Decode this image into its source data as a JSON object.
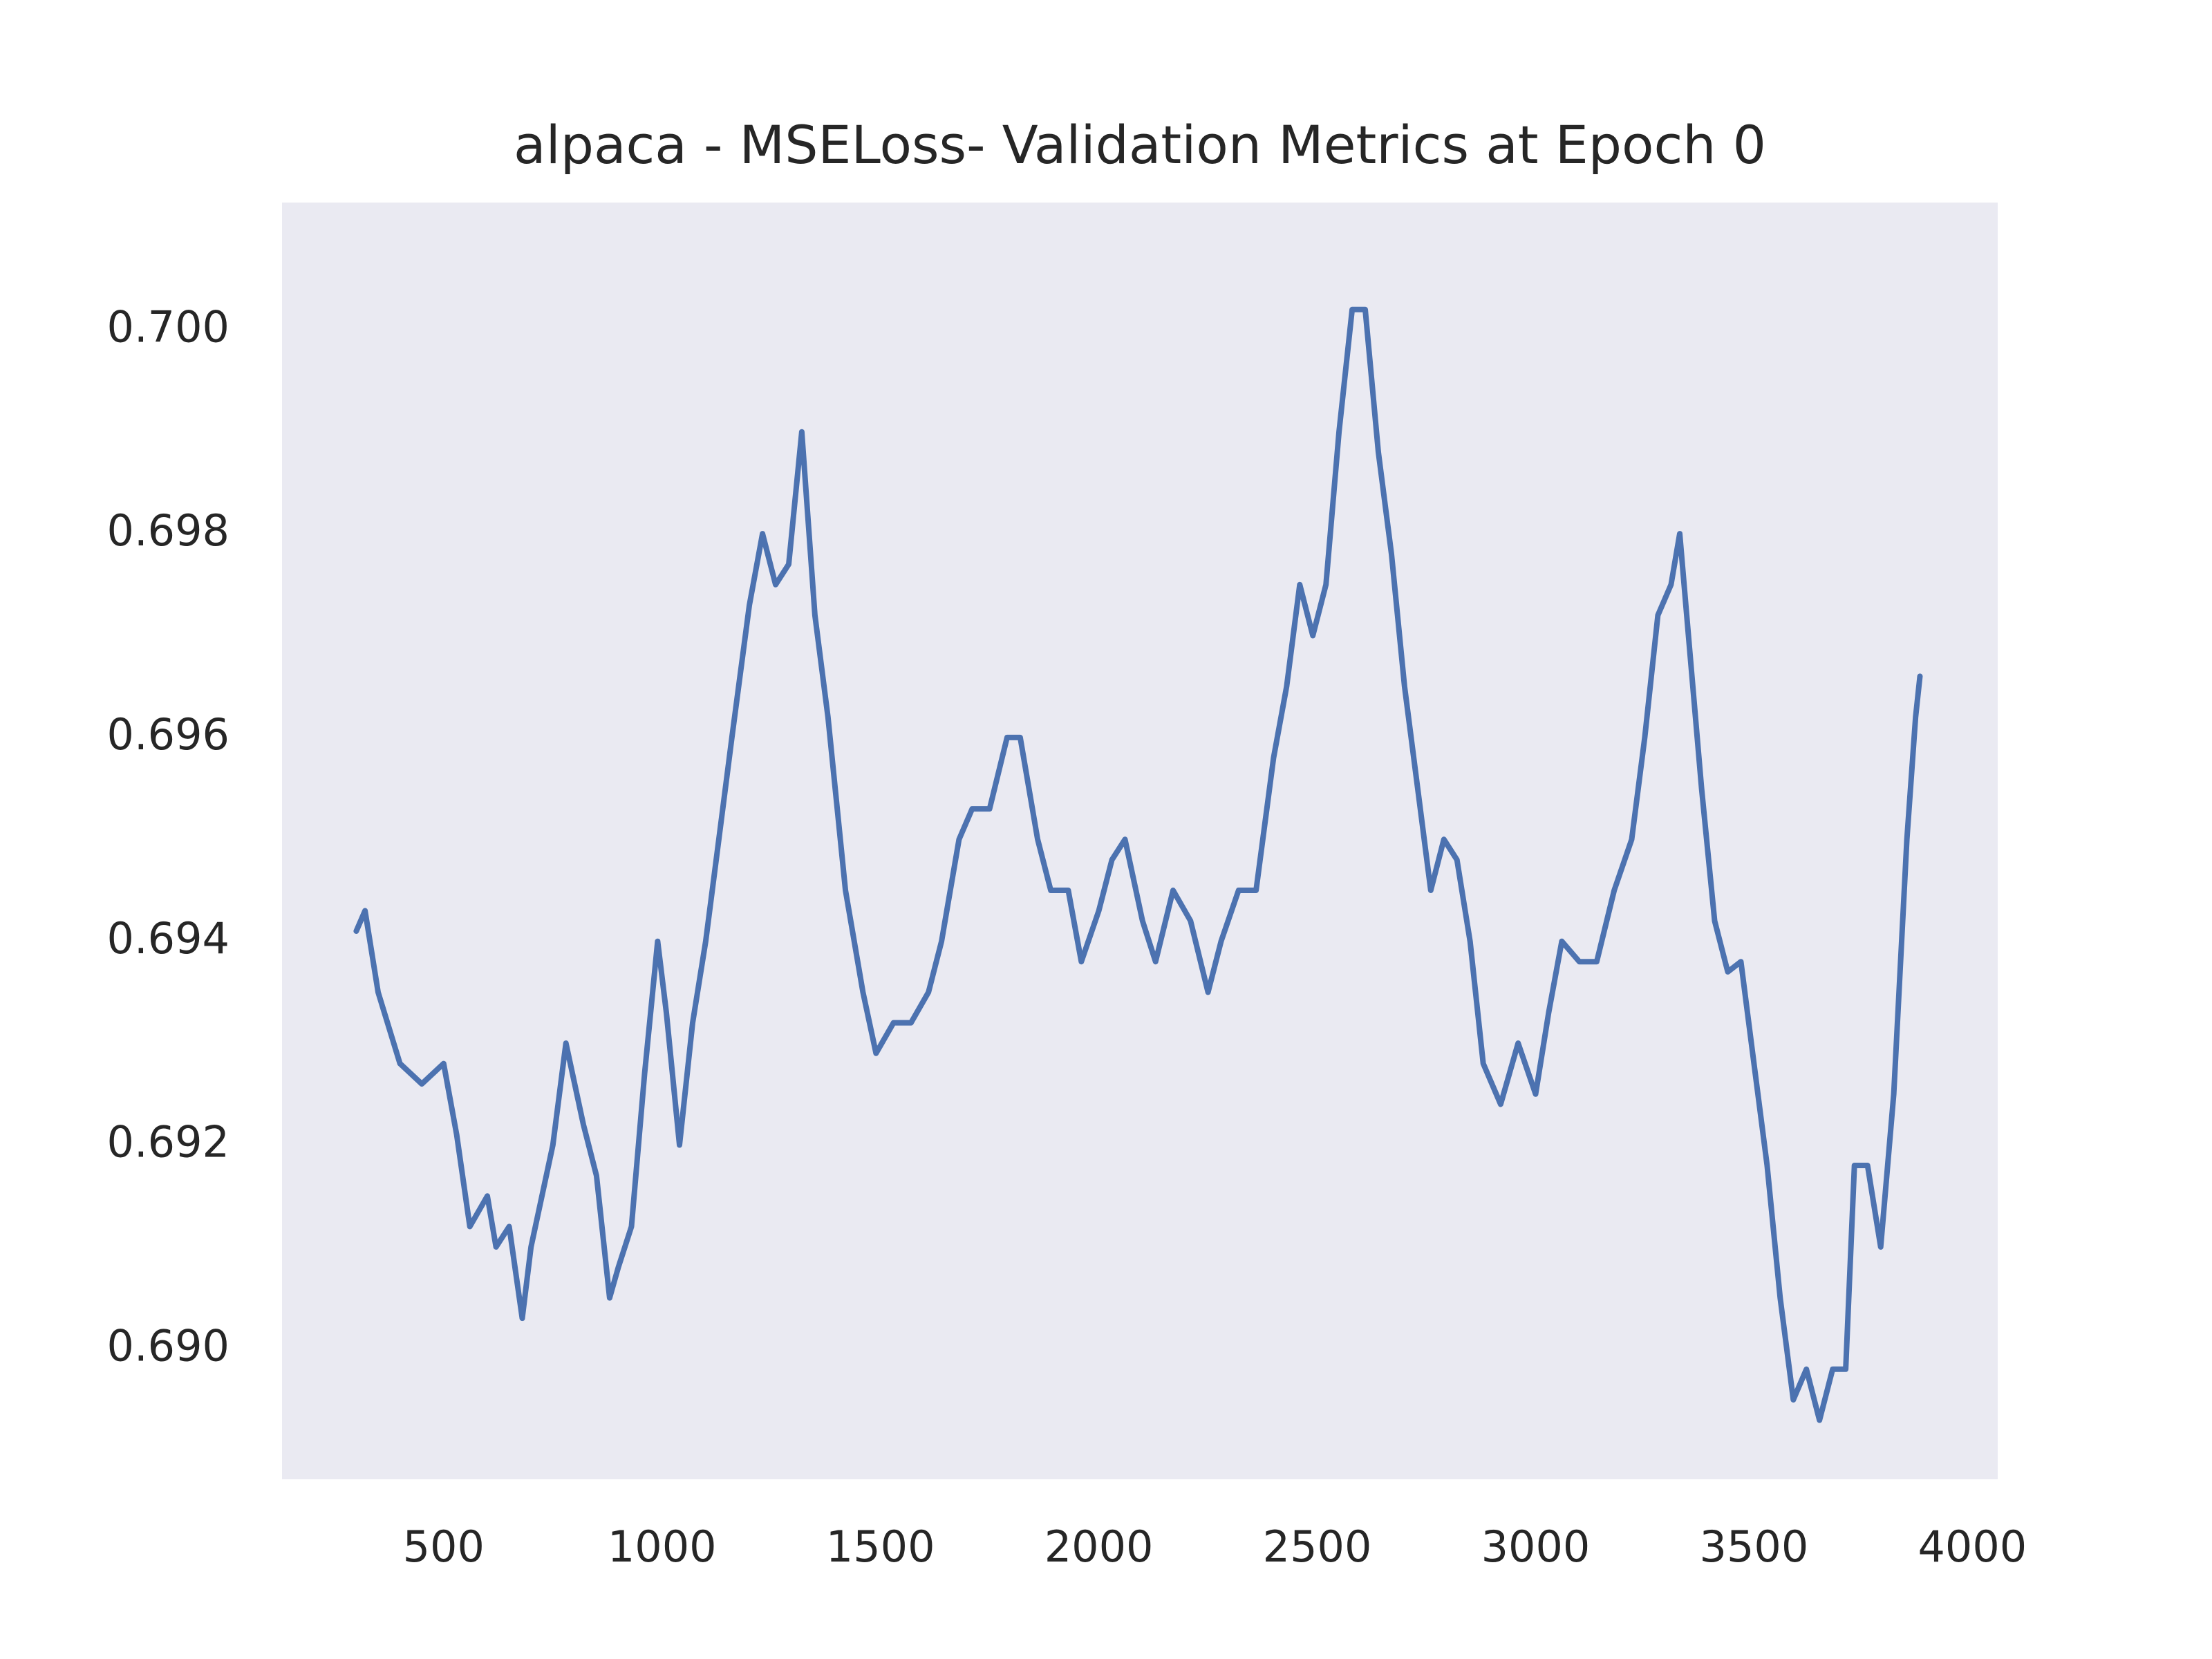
{
  "chart_data": {
    "type": "line",
    "title": "alpaca - MSELoss- Validation Metrics at Epoch 0",
    "xlim": [
      130,
      4058
    ],
    "ylim": [
      0.68872,
      0.70125
    ],
    "xticks": [
      500,
      1000,
      1500,
      2000,
      2500,
      3000,
      3500,
      4000
    ],
    "yticks": [
      {
        "value": 0.69,
        "label": "0.690"
      },
      0.692,
      0.694,
      0.696,
      0.698,
      {
        "value": 0.7,
        "label": "0.700"
      }
    ],
    "grid": false,
    "series": [
      {
        "color": "#4c72b0",
        "x": [
          300,
          320,
          350,
          400,
          450,
          500,
          530,
          560,
          600,
          620,
          650,
          680,
          700,
          750,
          780,
          820,
          850,
          880,
          900,
          930,
          960,
          990,
          1010,
          1040,
          1070,
          1100,
          1130,
          1160,
          1200,
          1230,
          1260,
          1290,
          1320,
          1350,
          1380,
          1420,
          1460,
          1490,
          1530,
          1570,
          1610,
          1640,
          1680,
          1710,
          1750,
          1790,
          1820,
          1860,
          1890,
          1930,
          1960,
          2000,
          2030,
          2060,
          2100,
          2130,
          2170,
          2210,
          2250,
          2280,
          2320,
          2360,
          2400,
          2430,
          2460,
          2490,
          2520,
          2550,
          2580,
          2610,
          2640,
          2670,
          2700,
          2730,
          2760,
          2790,
          2820,
          2850,
          2880,
          2920,
          2960,
          3000,
          3030,
          3060,
          3100,
          3140,
          3180,
          3220,
          3250,
          3280,
          3310,
          3330,
          3350,
          3380,
          3410,
          3440,
          3470,
          3500,
          3530,
          3560,
          3590,
          3620,
          3650,
          3680,
          3710,
          3730,
          3760,
          3790,
          3820,
          3850,
          3870,
          3880
        ],
        "values": [
          0.6941,
          0.6943,
          0.6935,
          0.6928,
          0.6926,
          0.6928,
          0.6921,
          0.6912,
          0.6915,
          0.691,
          0.6912,
          0.6903,
          0.691,
          0.692,
          0.693,
          0.6922,
          0.6917,
          0.6905,
          0.6908,
          0.6912,
          0.6927,
          0.694,
          0.6933,
          0.692,
          0.6932,
          0.694,
          0.695,
          0.696,
          0.6973,
          0.698,
          0.6975,
          0.6977,
          0.699,
          0.6972,
          0.6962,
          0.6945,
          0.6935,
          0.6929,
          0.6932,
          0.6932,
          0.6935,
          0.694,
          0.695,
          0.6953,
          0.6953,
          0.696,
          0.696,
          0.695,
          0.6945,
          0.6945,
          0.6938,
          0.6943,
          0.6948,
          0.695,
          0.6942,
          0.6938,
          0.6945,
          0.6942,
          0.6935,
          0.694,
          0.6945,
          0.6945,
          0.6958,
          0.6965,
          0.6975,
          0.697,
          0.6975,
          0.699,
          0.7002,
          0.7002,
          0.6988,
          0.6978,
          0.6965,
          0.6955,
          0.6945,
          0.695,
          0.6948,
          0.694,
          0.6928,
          0.6924,
          0.693,
          0.6925,
          0.6933,
          0.694,
          0.6938,
          0.6938,
          0.6945,
          0.695,
          0.696,
          0.6972,
          0.6975,
          0.698,
          0.697,
          0.6955,
          0.6942,
          0.6937,
          0.6938,
          0.6928,
          0.6918,
          0.6905,
          0.6895,
          0.6898,
          0.6893,
          0.6898,
          0.6898,
          0.6918,
          0.6918,
          0.691,
          0.6925,
          0.695,
          0.6962,
          0.6966
        ]
      }
    ]
  }
}
